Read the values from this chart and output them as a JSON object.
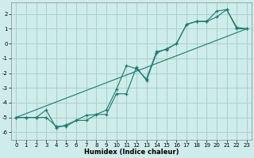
{
  "xlabel": "Humidex (Indice chaleur)",
  "background_color": "#ceecea",
  "grid_color": "#aacfcc",
  "line_color": "#1a7a6e",
  "xlim": [
    -0.5,
    23.5
  ],
  "ylim": [
    -6.5,
    2.8
  ],
  "xticks": [
    0,
    1,
    2,
    3,
    4,
    5,
    6,
    7,
    8,
    9,
    10,
    11,
    12,
    13,
    14,
    15,
    16,
    17,
    18,
    19,
    20,
    21,
    22,
    23
  ],
  "yticks": [
    -6,
    -5,
    -4,
    -3,
    -2,
    -1,
    0,
    1,
    2
  ],
  "line1_x": [
    0,
    1,
    2,
    3,
    4,
    5,
    6,
    7,
    8,
    9,
    10,
    11,
    12,
    13,
    14,
    15,
    16,
    17,
    18,
    19,
    20,
    21,
    22,
    23
  ],
  "line1_y": [
    -5.0,
    -5.0,
    -5.0,
    -5.0,
    -5.6,
    -5.6,
    -5.2,
    -5.2,
    -4.8,
    -4.8,
    -3.4,
    -3.4,
    -1.6,
    -2.5,
    -0.65,
    -0.35,
    0.0,
    1.3,
    1.5,
    1.5,
    2.2,
    2.3,
    1.1,
    1.0
  ],
  "line2_x": [
    0,
    1,
    2,
    3,
    4,
    5,
    6,
    7,
    8,
    9,
    10,
    11,
    12,
    13,
    14,
    15,
    16,
    17,
    18,
    19,
    20,
    21,
    22,
    23
  ],
  "line2_y": [
    -5.0,
    -5.0,
    -5.0,
    -4.5,
    -5.7,
    -5.5,
    -5.2,
    -4.85,
    -4.8,
    -4.5,
    -3.1,
    -1.5,
    -1.7,
    -2.4,
    -0.55,
    -0.4,
    0.0,
    1.3,
    1.5,
    1.5,
    1.8,
    2.3,
    1.0,
    1.0
  ],
  "line3_x": [
    0,
    23
  ],
  "line3_y": [
    -5.0,
    1.0
  ]
}
